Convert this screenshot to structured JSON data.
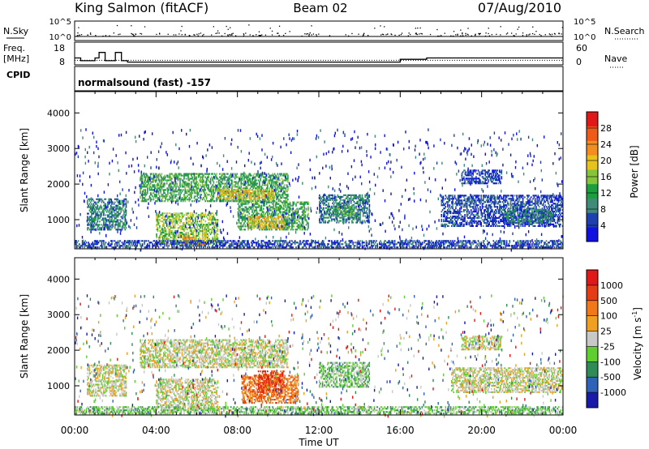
{
  "header": {
    "station": "King Salmon (fitACF)",
    "beam": "Beam 02",
    "date": "07/Aug/2010"
  },
  "aux_labels": {
    "nsky": "N.Sky",
    "freq": "Freq.",
    "freq_unit": "[MHz]",
    "cpid": "CPID",
    "nsearch": "N.Search",
    "nave": "Nave",
    "cpid_text": "normalsound (fast) -157"
  },
  "chart_data": [
    {
      "type": "line",
      "panel": "noise",
      "ylabel_left": "N.Sky",
      "ylabel_right": "N.Search",
      "yticks": [
        "10^5",
        "10^0"
      ],
      "yticks_right": [
        "10^5",
        "10^0"
      ],
      "x_range": [
        0,
        24
      ]
    },
    {
      "type": "line",
      "panel": "frequency",
      "ylabel_left": "Freq. [MHz]",
      "ylabel_right": "Nave",
      "yticks": [
        "18",
        "8"
      ],
      "yticks_right": [
        "60",
        "0"
      ],
      "x_range": [
        0,
        24
      ],
      "freq_series": {
        "x": [
          0,
          0.3,
          0.3,
          1.0,
          1.0,
          1.2,
          1.2,
          1.5,
          1.5,
          2.0,
          2.0,
          2.3,
          2.3,
          2.6,
          2.6,
          16.0,
          16.0,
          17.3,
          17.3,
          24.0
        ],
        "y": [
          13,
          13,
          11,
          11,
          13,
          13,
          17,
          17,
          11,
          11,
          17,
          17,
          11,
          11,
          10,
          10,
          12,
          12,
          13,
          13
        ]
      },
      "nave_level": 20
    },
    {
      "type": "heatmap",
      "panel": "power",
      "ylabel": "Slant Range [km]",
      "yticks": [
        1000,
        2000,
        3000,
        4000
      ],
      "ylim": [
        180,
        4600
      ],
      "x_range": [
        0,
        24
      ],
      "colorbar": {
        "label": "Power [dB]",
        "ticks": [
          "28",
          "24",
          "20",
          "16",
          "12",
          "8",
          "4"
        ],
        "colors": [
          "#1010e0",
          "#1d3fb0",
          "#3f8a79",
          "#1a9e3e",
          "#86c43a",
          "#e8c21c",
          "#f18e1f",
          "#ee5a18",
          "#e01818"
        ]
      },
      "echo_regions": [
        {
          "t0": 3.2,
          "t1": 10.5,
          "r0": 1500,
          "r1": 2300,
          "level": 3
        },
        {
          "t0": 7.0,
          "t1": 9.8,
          "r0": 1550,
          "r1": 1850,
          "level": 5
        },
        {
          "t0": 0.6,
          "t1": 2.5,
          "r0": 700,
          "r1": 1600,
          "level": 2
        },
        {
          "t0": 4.0,
          "t1": 7.0,
          "r0": 300,
          "r1": 1200,
          "level": 4
        },
        {
          "t0": 5.3,
          "t1": 6.3,
          "r0": 250,
          "r1": 500,
          "level": 6
        },
        {
          "t0": 8.0,
          "t1": 11.5,
          "r0": 700,
          "r1": 1500,
          "level": 3
        },
        {
          "t0": 8.5,
          "t1": 10.3,
          "r0": 750,
          "r1": 1100,
          "level": 5
        },
        {
          "t0": 12.0,
          "t1": 14.5,
          "r0": 900,
          "r1": 1700,
          "level": 2
        },
        {
          "t0": 12.8,
          "t1": 13.8,
          "r0": 1100,
          "r1": 1400,
          "level": 3
        },
        {
          "t0": 18.0,
          "t1": 24.0,
          "r0": 800,
          "r1": 1700,
          "level": 1
        },
        {
          "t0": 21.0,
          "t1": 23.5,
          "r0": 900,
          "r1": 1300,
          "level": 2
        },
        {
          "t0": 19.0,
          "t1": 21.0,
          "r0": 2000,
          "r1": 2400,
          "level": 1
        },
        {
          "t0": 0.0,
          "t1": 24.0,
          "r0": 200,
          "r1": 400,
          "level": 1
        }
      ]
    },
    {
      "type": "heatmap",
      "panel": "velocity",
      "ylabel": "Slant Range [km]",
      "xlabel": "Time UT",
      "yticks": [
        1000,
        2000,
        3000,
        4000
      ],
      "ylim": [
        180,
        4600
      ],
      "x_range": [
        0,
        24
      ],
      "xticks": [
        "00:00",
        "04:00",
        "08:00",
        "12:00",
        "16:00",
        "20:00",
        "00:00"
      ],
      "colorbar": {
        "label": "Velocity [m s-1]",
        "ticks": [
          "1000",
          "500",
          "100",
          "25",
          "-25",
          "-100",
          "-500",
          "-1000"
        ],
        "colors": [
          "#1a1aa8",
          "#2f63b8",
          "#2f8c55",
          "#5fcf2f",
          "#c8c8c8",
          "#f0a020",
          "#f07818",
          "#e43c14",
          "#e01818"
        ]
      },
      "echo_regions": [
        {
          "t0": 3.2,
          "t1": 10.5,
          "r0": 1500,
          "r1": 2300,
          "level": 4
        },
        {
          "t0": 0.6,
          "t1": 2.5,
          "r0": 700,
          "r1": 1600,
          "level": 4
        },
        {
          "t0": 4.0,
          "t1": 7.0,
          "r0": 300,
          "r1": 1200,
          "level": 4
        },
        {
          "t0": 8.2,
          "t1": 11.0,
          "r0": 500,
          "r1": 1300,
          "level": 6
        },
        {
          "t0": 9.0,
          "t1": 10.3,
          "r0": 800,
          "r1": 1400,
          "level": 7
        },
        {
          "t0": 12.0,
          "t1": 14.5,
          "r0": 950,
          "r1": 1650,
          "level": 3
        },
        {
          "t0": 18.5,
          "t1": 24.0,
          "r0": 800,
          "r1": 1500,
          "level": 4
        },
        {
          "t0": 19.0,
          "t1": 21.0,
          "r0": 2000,
          "r1": 2400,
          "level": 4
        },
        {
          "t0": 0.0,
          "t1": 24.0,
          "r0": 200,
          "r1": 400,
          "level": 3
        }
      ]
    }
  ]
}
